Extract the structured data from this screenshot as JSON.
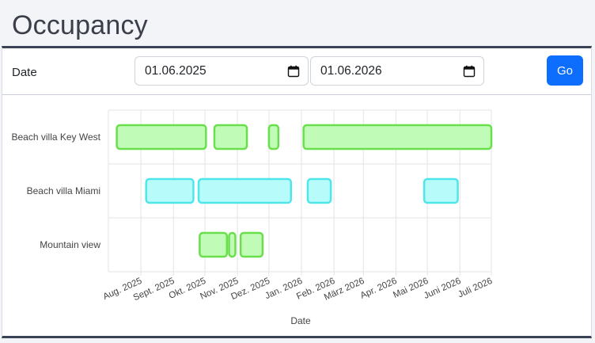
{
  "page": {
    "title": "Occupancy"
  },
  "filter": {
    "label": "Date",
    "start": {
      "value": "01.06.2025",
      "icon": "calendar-icon"
    },
    "end": {
      "value": "01.06.2026",
      "icon": "calendar-icon"
    },
    "go_label": "Go"
  },
  "colors": {
    "accent": "#0d6efd",
    "green_fill": "#c1fbb8",
    "green_stroke": "#69e04b",
    "cyan_fill": "#b7fbfb",
    "cyan_stroke": "#4fe6ea"
  },
  "chart_data": {
    "type": "timeline",
    "xlabel": "Date",
    "ylabel": "",
    "grid": true,
    "xlim": [
      "2025-07-01",
      "2026-07-01"
    ],
    "x_ticks": [
      "2025-08-01",
      "2025-09-01",
      "2025-10-01",
      "2025-11-01",
      "2025-12-01",
      "2026-01-01",
      "2026-02-01",
      "2026-03-01",
      "2026-04-01",
      "2026-05-01",
      "2026-06-01",
      "2026-07-01"
    ],
    "x_tick_labels": [
      "Aug. 2025",
      "Sept. 2025",
      "Okt. 2025",
      "Nov. 2025",
      "Dez. 2025",
      "Jan. 2026",
      "Feb. 2026",
      "März 2026",
      "Apr. 2026",
      "Mai 2026",
      "Juni 2026",
      "Juli 2026"
    ],
    "categories": [
      "Beach villa Key West",
      "Beach villa Miami",
      "Mountain view"
    ],
    "bookings": [
      {
        "row": 0,
        "start": "2025-07-09",
        "end": "2025-10-02",
        "color": "green"
      },
      {
        "row": 0,
        "start": "2025-10-10",
        "end": "2025-11-10",
        "color": "green"
      },
      {
        "row": 0,
        "start": "2025-12-01",
        "end": "2025-12-10",
        "color": "green"
      },
      {
        "row": 0,
        "start": "2026-01-03",
        "end": "2026-07-01",
        "color": "green"
      },
      {
        "row": 1,
        "start": "2025-08-06",
        "end": "2025-09-20",
        "color": "cyan"
      },
      {
        "row": 1,
        "start": "2025-09-25",
        "end": "2025-12-22",
        "color": "cyan"
      },
      {
        "row": 1,
        "start": "2026-01-07",
        "end": "2026-01-29",
        "color": "cyan"
      },
      {
        "row": 1,
        "start": "2026-04-28",
        "end": "2026-05-30",
        "color": "cyan"
      },
      {
        "row": 2,
        "start": "2025-09-26",
        "end": "2025-10-22",
        "color": "green"
      },
      {
        "row": 2,
        "start": "2025-10-24",
        "end": "2025-10-30",
        "color": "green"
      },
      {
        "row": 2,
        "start": "2025-11-04",
        "end": "2025-11-25",
        "color": "green"
      }
    ]
  }
}
